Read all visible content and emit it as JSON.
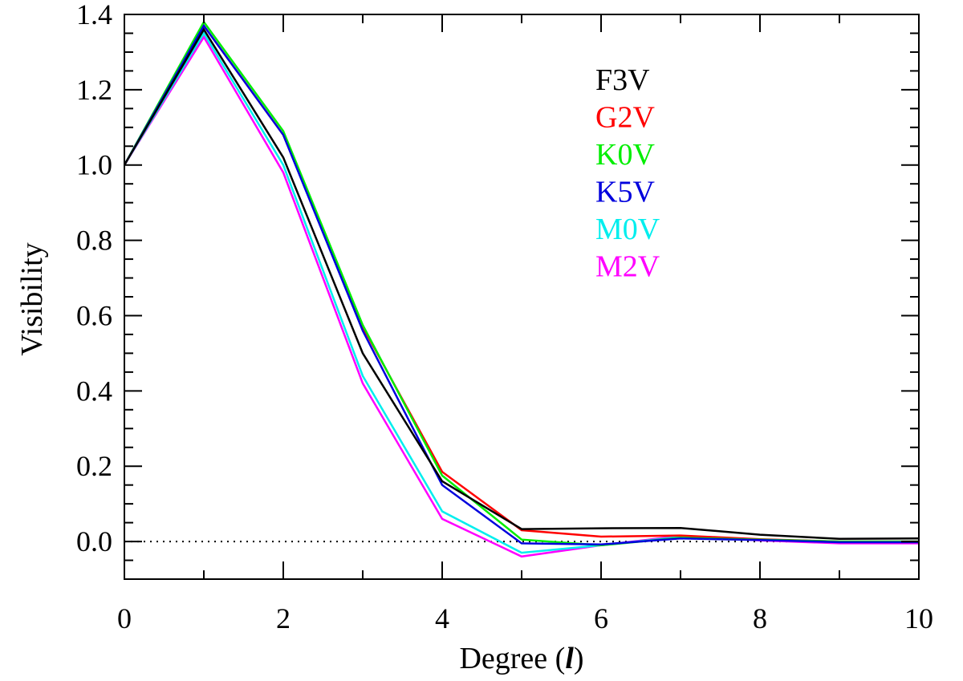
{
  "chart_data": {
    "type": "line",
    "title": "",
    "xlabel": "Degree (",
    "xlabel_symbol": "l",
    "xlabel_close": ")",
    "ylabel": "Visibility",
    "xlim": [
      0,
      10
    ],
    "ylim": [
      -0.1,
      1.4
    ],
    "x_ticks": [
      0,
      2,
      4,
      6,
      8,
      10
    ],
    "x_tick_labels": [
      "0",
      "2",
      "4",
      "6",
      "8",
      "10"
    ],
    "y_ticks": [
      0.0,
      0.2,
      0.4,
      0.6,
      0.8,
      1.0,
      1.2,
      1.4
    ],
    "y_tick_labels": [
      "0.0",
      "0.2",
      "0.4",
      "0.6",
      "0.8",
      "1.0",
      "1.2",
      "1.4"
    ],
    "x": [
      0,
      1,
      2,
      3,
      4,
      5,
      6,
      7,
      8,
      9,
      10
    ],
    "reference_line": {
      "y": 0,
      "style": "dotted"
    },
    "legend_position": "top-right",
    "series": [
      {
        "name": "F3V",
        "color": "#000000",
        "values": [
          1.0,
          1.36,
          1.02,
          0.5,
          0.16,
          0.033,
          0.035,
          0.036,
          0.018,
          0.007,
          0.008
        ]
      },
      {
        "name": "G2V",
        "color": "#ff0000",
        "values": [
          1.0,
          1.37,
          1.08,
          0.57,
          0.185,
          0.03,
          0.013,
          0.016,
          0.006,
          0.0,
          0.0
        ]
      },
      {
        "name": "K0V",
        "color": "#00ee00",
        "values": [
          1.0,
          1.38,
          1.09,
          0.575,
          0.175,
          0.005,
          -0.01,
          0.01,
          0.005,
          0.0,
          0.0
        ]
      },
      {
        "name": "K5V",
        "color": "#0000dd",
        "values": [
          1.0,
          1.37,
          1.08,
          0.56,
          0.15,
          -0.005,
          -0.008,
          0.008,
          0.004,
          -0.002,
          -0.002
        ]
      },
      {
        "name": "M0V",
        "color": "#00eeee",
        "values": [
          1.0,
          1.35,
          1.0,
          0.44,
          0.08,
          -0.03,
          -0.01,
          0.012,
          0.005,
          0.0,
          0.0
        ]
      },
      {
        "name": "M2V",
        "color": "#ff00ff",
        "values": [
          1.0,
          1.34,
          0.98,
          0.42,
          0.06,
          -0.04,
          -0.01,
          0.015,
          0.003,
          -0.005,
          -0.005
        ]
      }
    ]
  }
}
